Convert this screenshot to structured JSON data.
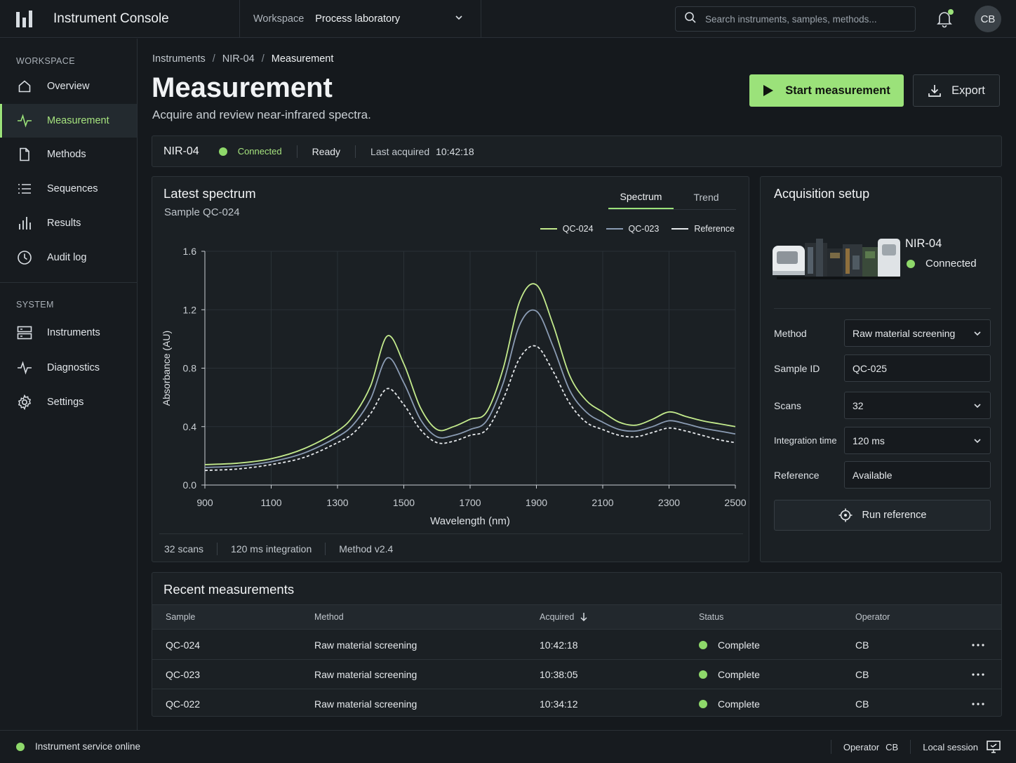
{
  "app": {
    "title": "Instrument Console"
  },
  "workspace": {
    "label": "Workspace",
    "value": "Process laboratory"
  },
  "search": {
    "placeholder": "Search instruments, samples, methods..."
  },
  "user": {
    "initials": "CB"
  },
  "sidebar": {
    "section_workspace": "WORKSPACE",
    "section_system": "SYSTEM",
    "items": [
      {
        "label": "Overview",
        "icon": "home-icon"
      },
      {
        "label": "Measurement",
        "icon": "pulse-icon",
        "active": true
      },
      {
        "label": "Methods",
        "icon": "document-icon"
      },
      {
        "label": "Sequences",
        "icon": "list-icon"
      },
      {
        "label": "Results",
        "icon": "bar-chart-icon"
      },
      {
        "label": "Audit log",
        "icon": "clock-icon"
      }
    ],
    "system_items": [
      {
        "label": "Instruments",
        "icon": "server-icon"
      },
      {
        "label": "Diagnostics",
        "icon": "pulse-icon"
      },
      {
        "label": "Settings",
        "icon": "gear-icon"
      }
    ]
  },
  "breadcrumb": [
    "Instruments",
    "NIR-04",
    "Measurement"
  ],
  "page": {
    "title": "Measurement",
    "subtitle": "Acquire and review near-infrared spectra."
  },
  "actions": {
    "start": "Start measurement",
    "export": "Export"
  },
  "status": {
    "instrument": "NIR-04",
    "connection": "Connected",
    "state": "Ready",
    "last_label": "Last acquired",
    "last_time": "10:42:18"
  },
  "spectrum": {
    "title": "Latest spectrum",
    "sample": "Sample QC-024",
    "tabs": [
      "Spectrum",
      "Trend"
    ],
    "footer": [
      "32 scans",
      "120 ms integration",
      "Method v2.4"
    ]
  },
  "chart_data": {
    "type": "line",
    "xlabel": "Wavelength (nm)",
    "ylabel": "Absorbance (AU)",
    "xlim": [
      900,
      2500
    ],
    "ylim": [
      0,
      1.6
    ],
    "xticks": [
      900,
      1100,
      1300,
      1500,
      1700,
      1900,
      2100,
      2300,
      2500
    ],
    "yticks": [
      "0.0",
      "0.4",
      "0.8",
      "1.2",
      "1.6"
    ],
    "legend": "top-right",
    "grid": true,
    "x": [
      900,
      1000,
      1100,
      1200,
      1300,
      1350,
      1400,
      1450,
      1500,
      1550,
      1600,
      1650,
      1700,
      1750,
      1800,
      1850,
      1900,
      1950,
      2000,
      2050,
      2100,
      2150,
      2200,
      2250,
      2300,
      2350,
      2400,
      2450,
      2500
    ],
    "series": [
      {
        "name": "QC-024",
        "color": "#c3ea8c",
        "dash": "",
        "values": [
          0.14,
          0.15,
          0.18,
          0.25,
          0.37,
          0.48,
          0.68,
          1.02,
          0.83,
          0.53,
          0.38,
          0.4,
          0.45,
          0.5,
          0.8,
          1.26,
          1.37,
          1.1,
          0.75,
          0.58,
          0.5,
          0.43,
          0.41,
          0.45,
          0.5,
          0.47,
          0.44,
          0.42,
          0.4
        ]
      },
      {
        "name": "QC-023",
        "color": "#8a9bb3",
        "dash": "",
        "values": [
          0.12,
          0.13,
          0.16,
          0.22,
          0.33,
          0.42,
          0.59,
          0.87,
          0.7,
          0.45,
          0.33,
          0.34,
          0.38,
          0.44,
          0.7,
          1.1,
          1.19,
          0.95,
          0.65,
          0.5,
          0.43,
          0.38,
          0.37,
          0.4,
          0.44,
          0.42,
          0.39,
          0.37,
          0.35
        ]
      },
      {
        "name": "Reference",
        "color": "#e6e9ec",
        "dash": "4 3",
        "values": [
          0.1,
          0.11,
          0.14,
          0.19,
          0.29,
          0.36,
          0.49,
          0.66,
          0.55,
          0.38,
          0.29,
          0.3,
          0.34,
          0.38,
          0.59,
          0.87,
          0.95,
          0.78,
          0.56,
          0.43,
          0.38,
          0.34,
          0.33,
          0.36,
          0.39,
          0.37,
          0.34,
          0.31,
          0.29
        ]
      }
    ]
  },
  "acquisition": {
    "title": "Acquisition setup",
    "device_name": "NIR-04",
    "device_status": "Connected",
    "fields": [
      {
        "label": "Method",
        "value": "Raw material screening",
        "type": "select"
      },
      {
        "label": "Sample ID",
        "value": "QC-025",
        "type": "text"
      },
      {
        "label": "Scans",
        "value": "32",
        "type": "select"
      },
      {
        "label": "Integration time",
        "value": "120 ms",
        "type": "select"
      },
      {
        "label": "Reference",
        "value": "Available",
        "type": "readonly"
      }
    ],
    "run_reference": "Run reference"
  },
  "recent": {
    "title": "Recent measurements",
    "columns": [
      "Sample",
      "Method",
      "Acquired",
      "Status",
      "Operator"
    ],
    "rows": [
      {
        "sample": "QC-024",
        "method": "Raw material screening",
        "acquired": "10:42:18",
        "status": "Complete",
        "operator": "CB"
      },
      {
        "sample": "QC-023",
        "method": "Raw material screening",
        "acquired": "10:38:05",
        "status": "Complete",
        "operator": "CB"
      },
      {
        "sample": "QC-022",
        "method": "Raw material screening",
        "acquired": "10:34:12",
        "status": "Complete",
        "operator": "CB"
      }
    ]
  },
  "footer": {
    "service": "Instrument service online",
    "operator_label": "Operator",
    "operator": "CB",
    "session": "Local session"
  },
  "colors": {
    "accent": "#9be27a",
    "background": "#15191d",
    "panel": "#1b2024"
  }
}
